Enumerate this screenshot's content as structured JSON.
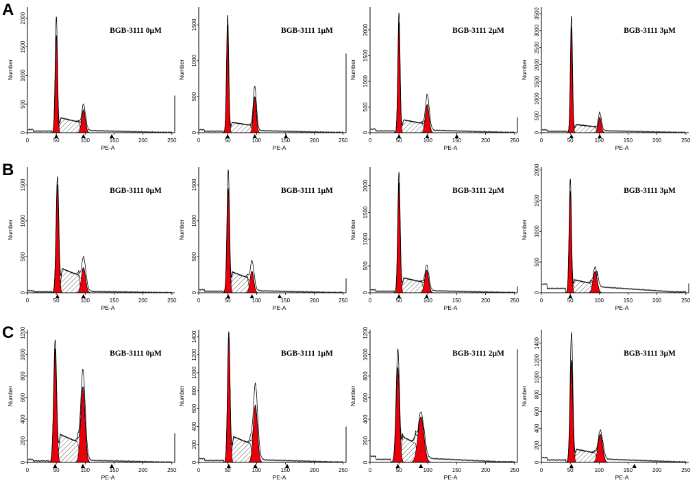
{
  "figure": {
    "row_labels": [
      "A",
      "B",
      "C"
    ],
    "colors": {
      "peak_fill": "#e8000b",
      "outline": "#000000",
      "hatch": "#555555"
    }
  },
  "chart_data": [
    {
      "type": "histogram",
      "row": "A",
      "title": "BGB-3111 0μM",
      "xlabel": "PE-A",
      "ylabel": "Number",
      "xlim": [
        0,
        255
      ],
      "ylim": [
        0,
        2200
      ],
      "xticks": [
        0,
        50,
        100,
        150,
        200,
        250
      ],
      "yticks": [
        0,
        500,
        1000,
        1500,
        2000
      ],
      "g1_peak": {
        "mean": 50,
        "sd": 2.0,
        "height": 1700
      },
      "g2_peak": {
        "mean": 97,
        "sd": 3.2,
        "height": 400
      },
      "s_phase_level": 270,
      "total_max": 2030,
      "g2_total_max": 500,
      "tail_level": 40,
      "markers": [
        50,
        97,
        146
      ],
      "right_edge_line": 650
    },
    {
      "type": "histogram",
      "row": "A",
      "title": "BGB-3111 1μM",
      "xlabel": "PE-A",
      "ylabel": "Number",
      "xlim": [
        0,
        255
      ],
      "ylim": [
        0,
        1750
      ],
      "xticks": [
        0,
        50,
        100,
        150,
        200,
        250
      ],
      "yticks": [
        0,
        500,
        1000,
        1500
      ],
      "g1_peak": {
        "mean": 50,
        "sd": 1.9,
        "height": 1500
      },
      "g2_peak": {
        "mean": 97,
        "sd": 2.6,
        "height": 500
      },
      "s_phase_level": 150,
      "total_max": 1640,
      "g2_total_max": 650,
      "tail_level": 30,
      "markers": [
        50,
        97,
        151
      ],
      "right_edge_line": 1100
    },
    {
      "type": "histogram",
      "row": "A",
      "title": "BGB-3111 2μM",
      "xlabel": "PE-A",
      "ylabel": "Number",
      "xlim": [
        0,
        255
      ],
      "ylim": [
        0,
        2450
      ],
      "xticks": [
        0,
        50,
        100,
        150,
        200,
        250
      ],
      "yticks": [
        0,
        500,
        1000,
        1500,
        2000
      ],
      "g1_peak": {
        "mean": 50,
        "sd": 1.9,
        "height": 2150
      },
      "g2_peak": {
        "mean": 99,
        "sd": 3.1,
        "height": 550
      },
      "s_phase_level": 260,
      "total_max": 2350,
      "g2_total_max": 750,
      "tail_level": 50,
      "markers": [
        50,
        99,
        150
      ],
      "right_edge_line": 300
    },
    {
      "type": "histogram",
      "row": "A",
      "title": "BGB-3111 3μM",
      "xlabel": "PE-A",
      "ylabel": "Number",
      "xlim": [
        0,
        255
      ],
      "ylim": [
        0,
        3700
      ],
      "xticks": [
        0,
        50,
        100,
        150,
        200,
        250
      ],
      "yticks": [
        0,
        500,
        1000,
        1500,
        2000,
        2500,
        3000,
        3500
      ],
      "g1_peak": {
        "mean": 52,
        "sd": 1.8,
        "height": 3100
      },
      "g2_peak": {
        "mean": 101,
        "sd": 2.6,
        "height": 450
      },
      "s_phase_level": 250,
      "total_max": 3450,
      "g2_total_max": 600,
      "tail_level": 60,
      "markers": [
        52,
        101
      ],
      "right_edge_line": 0
    },
    {
      "type": "histogram",
      "row": "B",
      "title": "BGB-3111 0μM",
      "xlabel": "PE-A",
      "ylabel": "Number",
      "xlim": [
        0,
        255
      ],
      "ylim": [
        0,
        1750
      ],
      "xticks": [
        0,
        50,
        100,
        150,
        200,
        250
      ],
      "yticks": [
        0,
        500,
        1000,
        1500
      ],
      "g1_peak": {
        "mean": 52,
        "sd": 2.4,
        "height": 1500
      },
      "g2_peak": {
        "mean": 97,
        "sd": 3.6,
        "height": 350
      },
      "s_phase_level": 350,
      "total_max": 1620,
      "g2_total_max": 500,
      "tail_level": 20,
      "markers": [
        52,
        97
      ],
      "right_edge_line": 0
    },
    {
      "type": "histogram",
      "row": "B",
      "title": "BGB-3111 1μM",
      "xlabel": "PE-A",
      "ylabel": "Number",
      "xlim": [
        0,
        255
      ],
      "ylim": [
        0,
        1750
      ],
      "xticks": [
        0,
        50,
        100,
        150,
        200,
        250
      ],
      "yticks": [
        0,
        500,
        1000,
        1500
      ],
      "g1_peak": {
        "mean": 51,
        "sd": 2.2,
        "height": 1450
      },
      "g2_peak": {
        "mean": 92,
        "sd": 3.2,
        "height": 300
      },
      "s_phase_level": 300,
      "total_max": 1720,
      "g2_total_max": 450,
      "tail_level": 30,
      "markers": [
        51,
        92,
        140
      ],
      "right_edge_line": 200
    },
    {
      "type": "histogram",
      "row": "B",
      "title": "BGB-3111 2μM",
      "xlabel": "PE-A",
      "ylabel": "Number",
      "xlim": [
        0,
        255
      ],
      "ylim": [
        0,
        2350
      ],
      "xticks": [
        0,
        50,
        100,
        150,
        200,
        250
      ],
      "yticks": [
        0,
        500,
        1000,
        1500,
        2000
      ],
      "g1_peak": {
        "mean": 50,
        "sd": 2.1,
        "height": 2050
      },
      "g2_peak": {
        "mean": 98,
        "sd": 3.4,
        "height": 420
      },
      "s_phase_level": 290,
      "total_max": 2250,
      "g2_total_max": 520,
      "tail_level": 40,
      "markers": [
        50,
        98
      ],
      "right_edge_line": 120
    },
    {
      "type": "histogram",
      "row": "B",
      "title": "BGB-3111 3μM",
      "xlabel": "PE-A",
      "ylabel": "Number",
      "xlim": [
        0,
        255
      ],
      "ylim": [
        0,
        2050
      ],
      "xticks": [
        0,
        50,
        100,
        150,
        200,
        250
      ],
      "yticks": [
        0,
        500,
        1000,
        1500,
        2000
      ],
      "g1_peak": {
        "mean": 50,
        "sd": 2.0,
        "height": 1650
      },
      "g2_peak": {
        "mean": 93,
        "sd": 3.6,
        "height": 350
      },
      "s_phase_level": 220,
      "total_max": 1860,
      "g2_total_max": 420,
      "tail_level": 100,
      "markers": [
        50
      ],
      "right_edge_line": 150
    },
    {
      "type": "histogram",
      "row": "C",
      "title": "BGB-3111 0μM",
      "xlabel": "PE-A",
      "ylabel": "Number",
      "xlim": [
        0,
        255
      ],
      "ylim": [
        0,
        1230
      ],
      "xticks": [
        0,
        50,
        100,
        150,
        200,
        250
      ],
      "yticks": [
        0,
        200,
        400,
        600,
        800,
        1000,
        1200
      ],
      "g1_peak": {
        "mean": 48,
        "sd": 2.6,
        "height": 1050
      },
      "g2_peak": {
        "mean": 96,
        "sd": 3.7,
        "height": 700
      },
      "s_phase_level": 270,
      "total_max": 1140,
      "g2_total_max": 860,
      "tail_level": 20,
      "markers": [
        48,
        96,
        146
      ],
      "right_edge_line": 270
    },
    {
      "type": "histogram",
      "row": "C",
      "title": "BGB-3111 1μM",
      "xlabel": "PE-A",
      "ylabel": "Number",
      "xlim": [
        0,
        255
      ],
      "ylim": [
        0,
        1480
      ],
      "xticks": [
        0,
        50,
        100,
        150,
        200,
        250
      ],
      "yticks": [
        0,
        200,
        400,
        600,
        800,
        1000,
        1200,
        1400
      ],
      "g1_peak": {
        "mean": 52,
        "sd": 2.2,
        "height": 1400
      },
      "g2_peak": {
        "mean": 98,
        "sd": 3.6,
        "height": 640
      },
      "s_phase_level": 300,
      "total_max": 1460,
      "g2_total_max": 880,
      "tail_level": 30,
      "markers": [
        52,
        98,
        153
      ],
      "right_edge_line": 400
    },
    {
      "type": "histogram",
      "row": "C",
      "title": "BGB-3111 2μM",
      "xlabel": "PE-A",
      "ylabel": "Number",
      "xlim": [
        0,
        255
      ],
      "ylim": [
        0,
        1230
      ],
      "xticks": [
        0,
        50,
        100,
        150,
        200,
        250
      ],
      "yticks": [
        0,
        200,
        400,
        600,
        800,
        1000,
        1200
      ],
      "g1_peak": {
        "mean": 48,
        "sd": 3.0,
        "height": 880
      },
      "g2_peak": {
        "mean": 88,
        "sd": 5.2,
        "height": 420
      },
      "s_phase_level": 250,
      "total_max": 1050,
      "g2_total_max": 470,
      "tail_level": 40,
      "markers": [
        48,
        88
      ],
      "right_edge_line": 1050
    },
    {
      "type": "histogram",
      "row": "C",
      "title": "BGB-3111 3μM",
      "xlabel": "PE-A",
      "ylabel": "Number",
      "xlim": [
        0,
        255
      ],
      "ylim": [
        0,
        1560
      ],
      "xticks": [
        0,
        50,
        100,
        150,
        200,
        250
      ],
      "yticks": [
        0,
        200,
        400,
        600,
        800,
        1000,
        1200,
        1400
      ],
      "g1_peak": {
        "mean": 52,
        "sd": 2.4,
        "height": 1200
      },
      "g2_peak": {
        "mean": 102,
        "sd": 4.0,
        "height": 330
      },
      "s_phase_level": 160,
      "total_max": 1540,
      "g2_total_max": 380,
      "tail_level": 40,
      "markers": [
        52,
        161
      ],
      "right_edge_line": 0
    }
  ]
}
